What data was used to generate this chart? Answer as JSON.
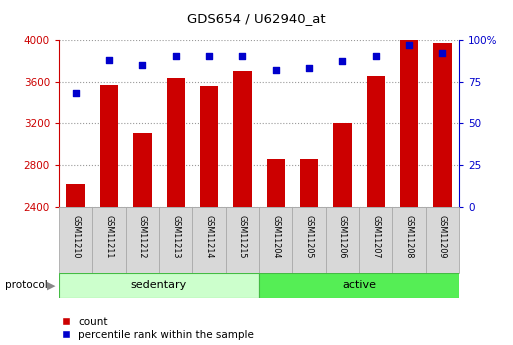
{
  "title": "GDS654 / U62940_at",
  "samples": [
    "GSM11210",
    "GSM11211",
    "GSM11212",
    "GSM11213",
    "GSM11214",
    "GSM11215",
    "GSM11204",
    "GSM11205",
    "GSM11206",
    "GSM11207",
    "GSM11208",
    "GSM11209"
  ],
  "counts": [
    2620,
    3570,
    3110,
    3630,
    3560,
    3700,
    2860,
    2860,
    3200,
    3650,
    4010,
    3970
  ],
  "percentile_ranks": [
    68,
    88,
    85,
    90,
    90,
    90,
    82,
    83,
    87,
    90,
    97,
    92
  ],
  "ylim_left": [
    2400,
    4000
  ],
  "ylim_right": [
    0,
    100
  ],
  "yticks_left": [
    2400,
    2800,
    3200,
    3600,
    4000
  ],
  "yticks_right": [
    0,
    25,
    50,
    75,
    100
  ],
  "yticklabels_right": [
    "0",
    "25",
    "50",
    "75",
    "100%"
  ],
  "bar_color": "#cc0000",
  "scatter_color": "#0000cc",
  "grid_color": "#999999",
  "sedentary_label": "sedentary",
  "active_label": "active",
  "protocol_label": "protocol",
  "count_legend": "count",
  "percentile_legend": "percentile rank within the sample",
  "background_color": "#ffffff",
  "xlabel_bg": "#d8d8d8",
  "xlabel_edge": "#aaaaaa",
  "sedentary_bg": "#ccffcc",
  "active_bg": "#55ee55",
  "protocol_border": "#44bb44",
  "bar_width": 0.55,
  "n_sedentary": 6,
  "n_active": 6
}
